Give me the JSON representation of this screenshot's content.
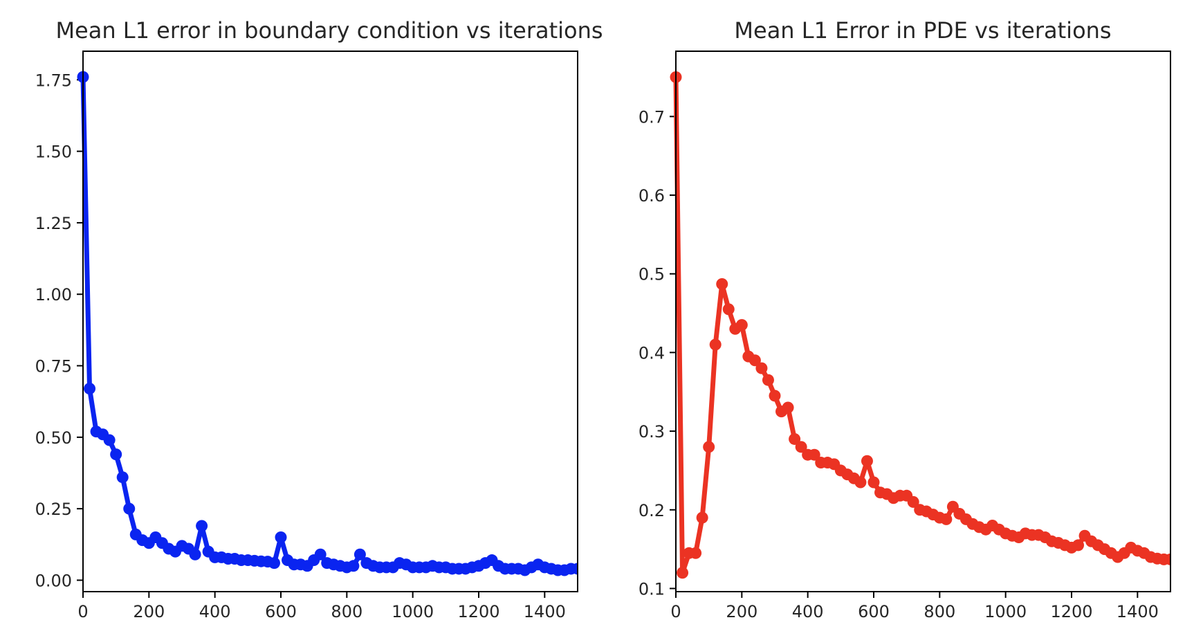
{
  "chart_data": [
    {
      "type": "line",
      "title": "Mean L1 error in boundary condition vs iterations",
      "xlabel": "",
      "ylabel": "",
      "xlim": [
        0,
        1500
      ],
      "ylim": [
        -0.04,
        1.85
      ],
      "xticks": [
        0,
        200,
        400,
        600,
        800,
        1000,
        1200,
        1400
      ],
      "yticks": [
        0.0,
        0.25,
        0.5,
        0.75,
        1.0,
        1.25,
        1.5,
        1.75
      ],
      "ytick_labels": [
        "0.00",
        "0.25",
        "0.50",
        "0.75",
        "1.00",
        "1.25",
        "1.50",
        "1.75"
      ],
      "grid": false,
      "color": "#0a24f0",
      "markers": true,
      "series": [
        {
          "x": [
            0,
            20,
            40,
            60,
            80,
            100,
            120,
            140,
            160,
            180,
            200,
            220,
            240,
            260,
            280,
            300,
            320,
            340,
            360,
            380,
            400,
            420,
            440,
            460,
            480,
            500,
            520,
            540,
            560,
            580,
            600,
            620,
            640,
            660,
            680,
            700,
            720,
            740,
            760,
            780,
            800,
            820,
            840,
            860,
            880,
            900,
            920,
            940,
            960,
            980,
            1000,
            1020,
            1040,
            1060,
            1080,
            1100,
            1120,
            1140,
            1160,
            1180,
            1200,
            1220,
            1240,
            1260,
            1280,
            1300,
            1320,
            1340,
            1360,
            1380,
            1400,
            1420,
            1440,
            1460,
            1480,
            1500
          ],
          "y": [
            1.76,
            0.67,
            0.52,
            0.51,
            0.49,
            0.44,
            0.36,
            0.25,
            0.16,
            0.14,
            0.13,
            0.15,
            0.13,
            0.11,
            0.1,
            0.12,
            0.11,
            0.09,
            0.19,
            0.1,
            0.08,
            0.08,
            0.075,
            0.075,
            0.07,
            0.07,
            0.068,
            0.066,
            0.065,
            0.06,
            0.15,
            0.07,
            0.055,
            0.055,
            0.05,
            0.07,
            0.09,
            0.06,
            0.055,
            0.05,
            0.045,
            0.05,
            0.09,
            0.06,
            0.05,
            0.045,
            0.045,
            0.045,
            0.06,
            0.055,
            0.045,
            0.045,
            0.045,
            0.05,
            0.045,
            0.045,
            0.04,
            0.04,
            0.04,
            0.045,
            0.05,
            0.06,
            0.07,
            0.05,
            0.04,
            0.04,
            0.04,
            0.035,
            0.045,
            0.055,
            0.045,
            0.04,
            0.035,
            0.035,
            0.04,
            0.04
          ]
        }
      ]
    },
    {
      "type": "line",
      "title": "Mean L1 Error in PDE vs iterations",
      "xlabel": "",
      "ylabel": "",
      "xlim": [
        0,
        1500
      ],
      "ylim": [
        0.096,
        0.783
      ],
      "xticks": [
        0,
        200,
        400,
        600,
        800,
        1000,
        1200,
        1400
      ],
      "yticks": [
        0.1,
        0.2,
        0.3,
        0.4,
        0.5,
        0.6,
        0.7
      ],
      "ytick_labels": [
        "0.1",
        "0.2",
        "0.3",
        "0.4",
        "0.5",
        "0.6",
        "0.7"
      ],
      "grid": false,
      "color": "#eb3323",
      "markers": true,
      "series": [
        {
          "x": [
            0,
            20,
            40,
            60,
            80,
            100,
            120,
            140,
            160,
            180,
            200,
            220,
            240,
            260,
            280,
            300,
            320,
            340,
            360,
            380,
            400,
            420,
            440,
            460,
            480,
            500,
            520,
            540,
            560,
            580,
            600,
            620,
            640,
            660,
            680,
            700,
            720,
            740,
            760,
            780,
            800,
            820,
            840,
            860,
            880,
            900,
            920,
            940,
            960,
            980,
            1000,
            1020,
            1040,
            1060,
            1080,
            1100,
            1120,
            1140,
            1160,
            1180,
            1200,
            1220,
            1240,
            1260,
            1280,
            1300,
            1320,
            1340,
            1360,
            1380,
            1400,
            1420,
            1440,
            1460,
            1480,
            1500
          ],
          "y": [
            0.75,
            0.12,
            0.145,
            0.145,
            0.19,
            0.28,
            0.41,
            0.487,
            0.455,
            0.43,
            0.435,
            0.395,
            0.39,
            0.38,
            0.365,
            0.345,
            0.325,
            0.33,
            0.29,
            0.28,
            0.27,
            0.27,
            0.26,
            0.26,
            0.258,
            0.25,
            0.245,
            0.24,
            0.235,
            0.262,
            0.235,
            0.222,
            0.22,
            0.215,
            0.218,
            0.218,
            0.21,
            0.2,
            0.198,
            0.194,
            0.19,
            0.188,
            0.204,
            0.195,
            0.188,
            0.182,
            0.178,
            0.175,
            0.18,
            0.175,
            0.17,
            0.167,
            0.165,
            0.17,
            0.168,
            0.168,
            0.165,
            0.16,
            0.158,
            0.155,
            0.152,
            0.155,
            0.167,
            0.16,
            0.155,
            0.15,
            0.145,
            0.14,
            0.145,
            0.152,
            0.148,
            0.145,
            0.14,
            0.138,
            0.137,
            0.137
          ]
        }
      ]
    }
  ]
}
